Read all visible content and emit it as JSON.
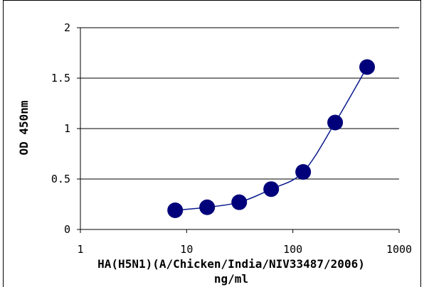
{
  "chart_data": {
    "type": "scatter",
    "title": "",
    "xlabel": "HA(H5N1)(A/Chicken/India/NIV33487/2006)",
    "xlabel_line2": "ng/ml",
    "ylabel": "OD 450nm",
    "x_scale": "log",
    "xlim": [
      1,
      1000
    ],
    "ylim": [
      0,
      2
    ],
    "x_ticks": [
      "1",
      "10",
      "100",
      "1000"
    ],
    "y_ticks": [
      "0",
      "0.5",
      "1",
      "1.5",
      "2"
    ],
    "grid": "horizontal",
    "legend": "none",
    "colors": {
      "marker": "#00007a",
      "line": "#0a1a8c",
      "grid": "#000000"
    },
    "series": [
      {
        "x": [
          7.8,
          15.6,
          31.25,
          62.5,
          125,
          250,
          500
        ],
        "y": [
          0.19,
          0.22,
          0.27,
          0.4,
          0.57,
          1.06,
          1.61
        ]
      }
    ]
  }
}
